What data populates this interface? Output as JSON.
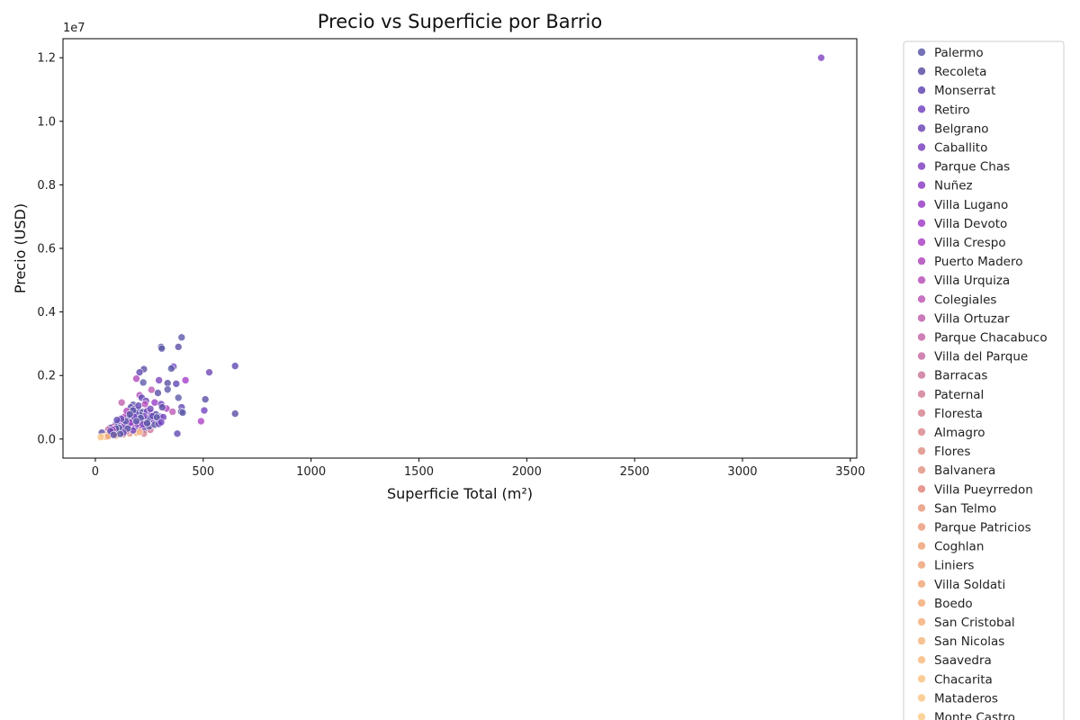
{
  "chart_data": {
    "type": "scatter",
    "title": "Precio vs Superficie por Barrio",
    "xlabel": "Superficie Total (m²)",
    "ylabel": "Precio (USD)",
    "y_offset_label": "1e7",
    "xlim": [
      -150,
      3530
    ],
    "ylim": [
      -600000,
      12600000
    ],
    "x_ticks": [
      0,
      500,
      1000,
      1500,
      2000,
      2500,
      3000,
      3500
    ],
    "x_tick_labels": [
      "0",
      "500",
      "1000",
      "1500",
      "2000",
      "2500",
      "3000",
      "3500"
    ],
    "y_ticks": [
      0,
      2000000,
      4000000,
      6000000,
      8000000,
      10000000,
      12000000
    ],
    "y_tick_labels": [
      "0.0",
      "0.2",
      "0.4",
      "0.6",
      "0.8",
      "1.0",
      "1.2"
    ],
    "legend_position": "right-outside",
    "legend": [
      {
        "name": "Palermo",
        "color": "#5d5aa9"
      },
      {
        "name": "Recoleta",
        "color": "#5a4fa5"
      },
      {
        "name": "Monserrat",
        "color": "#6148b3"
      },
      {
        "name": "Retiro",
        "color": "#7345c0"
      },
      {
        "name": "Belgrano",
        "color": "#7048b6"
      },
      {
        "name": "Caballito",
        "color": "#7c44bf"
      },
      {
        "name": "Parque Chas",
        "color": "#8242c2"
      },
      {
        "name": "Nuñez",
        "color": "#8e40c5"
      },
      {
        "name": "Villa Lugano",
        "color": "#993fc6"
      },
      {
        "name": "Villa Devoto",
        "color": "#a340c8"
      },
      {
        "name": "Villa Crespo",
        "color": "#ab44c4"
      },
      {
        "name": "Puerto Madero",
        "color": "#b14abc"
      },
      {
        "name": "Villa Urquiza",
        "color": "#b752bb"
      },
      {
        "name": "Colegiales",
        "color": "#bd5bb6"
      },
      {
        "name": "Villa Ortuzar",
        "color": "#c262ae"
      },
      {
        "name": "Parque Chacabuco",
        "color": "#c669a9"
      },
      {
        "name": "Villa del Parque",
        "color": "#ca70a4"
      },
      {
        "name": "Barracas",
        "color": "#cf789e"
      },
      {
        "name": "Paternal",
        "color": "#d37f98"
      },
      {
        "name": "Floresta",
        "color": "#d78593"
      },
      {
        "name": "Almagro",
        "color": "#da8b8d"
      },
      {
        "name": "Flores",
        "color": "#de9188"
      },
      {
        "name": "Balvanera",
        "color": "#e19683"
      },
      {
        "name": "Villa Pueyrredon",
        "color": "#e4857e"
      },
      {
        "name": "San Telmo",
        "color": "#e89a7f"
      },
      {
        "name": "Parque Patricios",
        "color": "#ec9c7d"
      },
      {
        "name": "Coghlan",
        "color": "#efa37a"
      },
      {
        "name": "Liniers",
        "color": "#eea47c"
      },
      {
        "name": "Villa Soldati",
        "color": "#f1a87a"
      },
      {
        "name": "Boedo",
        "color": "#f3ad7a"
      },
      {
        "name": "San Cristobal",
        "color": "#f5b27e"
      },
      {
        "name": "San Nicolas",
        "color": "#f6b781"
      },
      {
        "name": "Saavedra",
        "color": "#f8bc82"
      },
      {
        "name": "Chacarita",
        "color": "#f9c284"
      },
      {
        "name": "Mataderos",
        "color": "#fac787"
      },
      {
        "name": "Monte Castro",
        "color": "#fbcc88"
      }
    ],
    "points": [
      {
        "x": 3365,
        "y": 12000000,
        "c": 6
      },
      {
        "x": 400,
        "y": 3200000,
        "c": 0
      },
      {
        "x": 305,
        "y": 2900000,
        "c": 1
      },
      {
        "x": 308,
        "y": 2850000,
        "c": 0
      },
      {
        "x": 385,
        "y": 2900000,
        "c": 1
      },
      {
        "x": 648,
        "y": 2300000,
        "c": 2
      },
      {
        "x": 362,
        "y": 2280000,
        "c": 3
      },
      {
        "x": 352,
        "y": 2220000,
        "c": 0
      },
      {
        "x": 225,
        "y": 2200000,
        "c": 1
      },
      {
        "x": 205,
        "y": 2100000,
        "c": 2
      },
      {
        "x": 528,
        "y": 2100000,
        "c": 4
      },
      {
        "x": 295,
        "y": 1850000,
        "c": 5
      },
      {
        "x": 418,
        "y": 1850000,
        "c": 9
      },
      {
        "x": 190,
        "y": 1900000,
        "c": 11
      },
      {
        "x": 222,
        "y": 1780000,
        "c": 0
      },
      {
        "x": 335,
        "y": 1760000,
        "c": 1
      },
      {
        "x": 375,
        "y": 1740000,
        "c": 2
      },
      {
        "x": 260,
        "y": 1550000,
        "c": 13
      },
      {
        "x": 290,
        "y": 1450000,
        "c": 1
      },
      {
        "x": 335,
        "y": 1560000,
        "c": 0
      },
      {
        "x": 205,
        "y": 1380000,
        "c": 12
      },
      {
        "x": 215,
        "y": 1300000,
        "c": 2
      },
      {
        "x": 385,
        "y": 1300000,
        "c": 0
      },
      {
        "x": 510,
        "y": 1250000,
        "c": 1
      },
      {
        "x": 122,
        "y": 1150000,
        "c": 14
      },
      {
        "x": 235,
        "y": 1200000,
        "c": 4
      },
      {
        "x": 275,
        "y": 1150000,
        "c": 8
      },
      {
        "x": 305,
        "y": 1100000,
        "c": 3
      },
      {
        "x": 175,
        "y": 1080000,
        "c": 0
      },
      {
        "x": 400,
        "y": 1000000,
        "c": 2
      },
      {
        "x": 330,
        "y": 960000,
        "c": 10
      },
      {
        "x": 505,
        "y": 900000,
        "c": 3
      },
      {
        "x": 398,
        "y": 860000,
        "c": 1
      },
      {
        "x": 405,
        "y": 830000,
        "c": 0
      },
      {
        "x": 358,
        "y": 860000,
        "c": 13
      },
      {
        "x": 648,
        "y": 800000,
        "c": 1
      },
      {
        "x": 490,
        "y": 560000,
        "c": 10
      },
      {
        "x": 380,
        "y": 170000,
        "c": 2
      },
      {
        "x": 165,
        "y": 1000000,
        "c": 1
      },
      {
        "x": 180,
        "y": 950000,
        "c": 5
      },
      {
        "x": 200,
        "y": 900000,
        "c": 2
      },
      {
        "x": 220,
        "y": 850000,
        "c": 0
      },
      {
        "x": 240,
        "y": 880000,
        "c": 4
      },
      {
        "x": 260,
        "y": 820000,
        "c": 7
      },
      {
        "x": 280,
        "y": 780000,
        "c": 1
      },
      {
        "x": 300,
        "y": 700000,
        "c": 2
      },
      {
        "x": 315,
        "y": 690000,
        "c": 3
      },
      {
        "x": 150,
        "y": 750000,
        "c": 0
      },
      {
        "x": 135,
        "y": 700000,
        "c": 11
      },
      {
        "x": 160,
        "y": 650000,
        "c": 1
      },
      {
        "x": 190,
        "y": 620000,
        "c": 5
      },
      {
        "x": 210,
        "y": 600000,
        "c": 12
      },
      {
        "x": 230,
        "y": 560000,
        "c": 2
      },
      {
        "x": 250,
        "y": 540000,
        "c": 0
      },
      {
        "x": 270,
        "y": 600000,
        "c": 6
      },
      {
        "x": 290,
        "y": 500000,
        "c": 4
      },
      {
        "x": 120,
        "y": 580000,
        "c": 1
      },
      {
        "x": 110,
        "y": 520000,
        "c": 10
      },
      {
        "x": 100,
        "y": 480000,
        "c": 0
      },
      {
        "x": 90,
        "y": 430000,
        "c": 2
      },
      {
        "x": 80,
        "y": 380000,
        "c": 14
      },
      {
        "x": 70,
        "y": 350000,
        "c": 1
      },
      {
        "x": 60,
        "y": 300000,
        "c": 16
      },
      {
        "x": 140,
        "y": 450000,
        "c": 3
      },
      {
        "x": 155,
        "y": 420000,
        "c": 5
      },
      {
        "x": 170,
        "y": 400000,
        "c": 0
      },
      {
        "x": 185,
        "y": 380000,
        "c": 9
      },
      {
        "x": 200,
        "y": 360000,
        "c": 1
      },
      {
        "x": 215,
        "y": 330000,
        "c": 13
      },
      {
        "x": 230,
        "y": 300000,
        "c": 2
      },
      {
        "x": 255,
        "y": 290000,
        "c": 17
      },
      {
        "x": 125,
        "y": 300000,
        "c": 0
      },
      {
        "x": 115,
        "y": 260000,
        "c": 18
      },
      {
        "x": 105,
        "y": 240000,
        "c": 1
      },
      {
        "x": 95,
        "y": 220000,
        "c": 20
      },
      {
        "x": 85,
        "y": 200000,
        "c": 2
      },
      {
        "x": 75,
        "y": 180000,
        "c": 22
      },
      {
        "x": 65,
        "y": 160000,
        "c": 0
      },
      {
        "x": 55,
        "y": 140000,
        "c": 24
      },
      {
        "x": 45,
        "y": 120000,
        "c": 26
      },
      {
        "x": 35,
        "y": 100000,
        "c": 28
      },
      {
        "x": 30,
        "y": 200000,
        "c": 1
      },
      {
        "x": 40,
        "y": 80000,
        "c": 30
      },
      {
        "x": 50,
        "y": 70000,
        "c": 32
      },
      {
        "x": 25,
        "y": 60000,
        "c": 34
      },
      {
        "x": 60,
        "y": 90000,
        "c": 27
      },
      {
        "x": 95,
        "y": 110000,
        "c": 25
      },
      {
        "x": 130,
        "y": 150000,
        "c": 23
      },
      {
        "x": 160,
        "y": 180000,
        "c": 21
      },
      {
        "x": 190,
        "y": 200000,
        "c": 29
      },
      {
        "x": 225,
        "y": 170000,
        "c": 19
      },
      {
        "x": 205,
        "y": 220000,
        "c": 31
      },
      {
        "x": 145,
        "y": 250000,
        "c": 15
      },
      {
        "x": 175,
        "y": 270000,
        "c": 3
      },
      {
        "x": 195,
        "y": 480000,
        "c": 7
      },
      {
        "x": 165,
        "y": 520000,
        "c": 8
      },
      {
        "x": 245,
        "y": 650000,
        "c": 1
      },
      {
        "x": 265,
        "y": 720000,
        "c": 2
      },
      {
        "x": 285,
        "y": 680000,
        "c": 0
      },
      {
        "x": 225,
        "y": 720000,
        "c": 5
      },
      {
        "x": 205,
        "y": 760000,
        "c": 1
      },
      {
        "x": 185,
        "y": 820000,
        "c": 2
      },
      {
        "x": 145,
        "y": 880000,
        "c": 11
      },
      {
        "x": 175,
        "y": 900000,
        "c": 0
      },
      {
        "x": 255,
        "y": 950000,
        "c": 4
      },
      {
        "x": 310,
        "y": 1000000,
        "c": 1
      },
      {
        "x": 200,
        "y": 1050000,
        "c": 2
      },
      {
        "x": 230,
        "y": 1100000,
        "c": 12
      },
      {
        "x": 250,
        "y": 400000,
        "c": 0
      },
      {
        "x": 275,
        "y": 450000,
        "c": 1
      },
      {
        "x": 295,
        "y": 480000,
        "c": 2
      },
      {
        "x": 305,
        "y": 530000,
        "c": 3
      },
      {
        "x": 130,
        "y": 380000,
        "c": 6
      },
      {
        "x": 110,
        "y": 350000,
        "c": 0
      },
      {
        "x": 95,
        "y": 330000,
        "c": 1
      },
      {
        "x": 80,
        "y": 290000,
        "c": 10
      },
      {
        "x": 70,
        "y": 250000,
        "c": 2
      },
      {
        "x": 150,
        "y": 330000,
        "c": 0
      },
      {
        "x": 140,
        "y": 560000,
        "c": 1
      },
      {
        "x": 120,
        "y": 640000,
        "c": 4
      },
      {
        "x": 100,
        "y": 600000,
        "c": 2
      },
      {
        "x": 210,
        "y": 660000,
        "c": 0
      },
      {
        "x": 180,
        "y": 700000,
        "c": 3
      },
      {
        "x": 160,
        "y": 780000,
        "c": 1
      },
      {
        "x": 130,
        "y": 200000,
        "c": 2
      },
      {
        "x": 115,
        "y": 160000,
        "c": 0
      },
      {
        "x": 85,
        "y": 130000,
        "c": 1
      },
      {
        "x": 220,
        "y": 460000,
        "c": 5
      },
      {
        "x": 240,
        "y": 500000,
        "c": 1
      },
      {
        "x": 190,
        "y": 560000,
        "c": 0
      }
    ]
  }
}
